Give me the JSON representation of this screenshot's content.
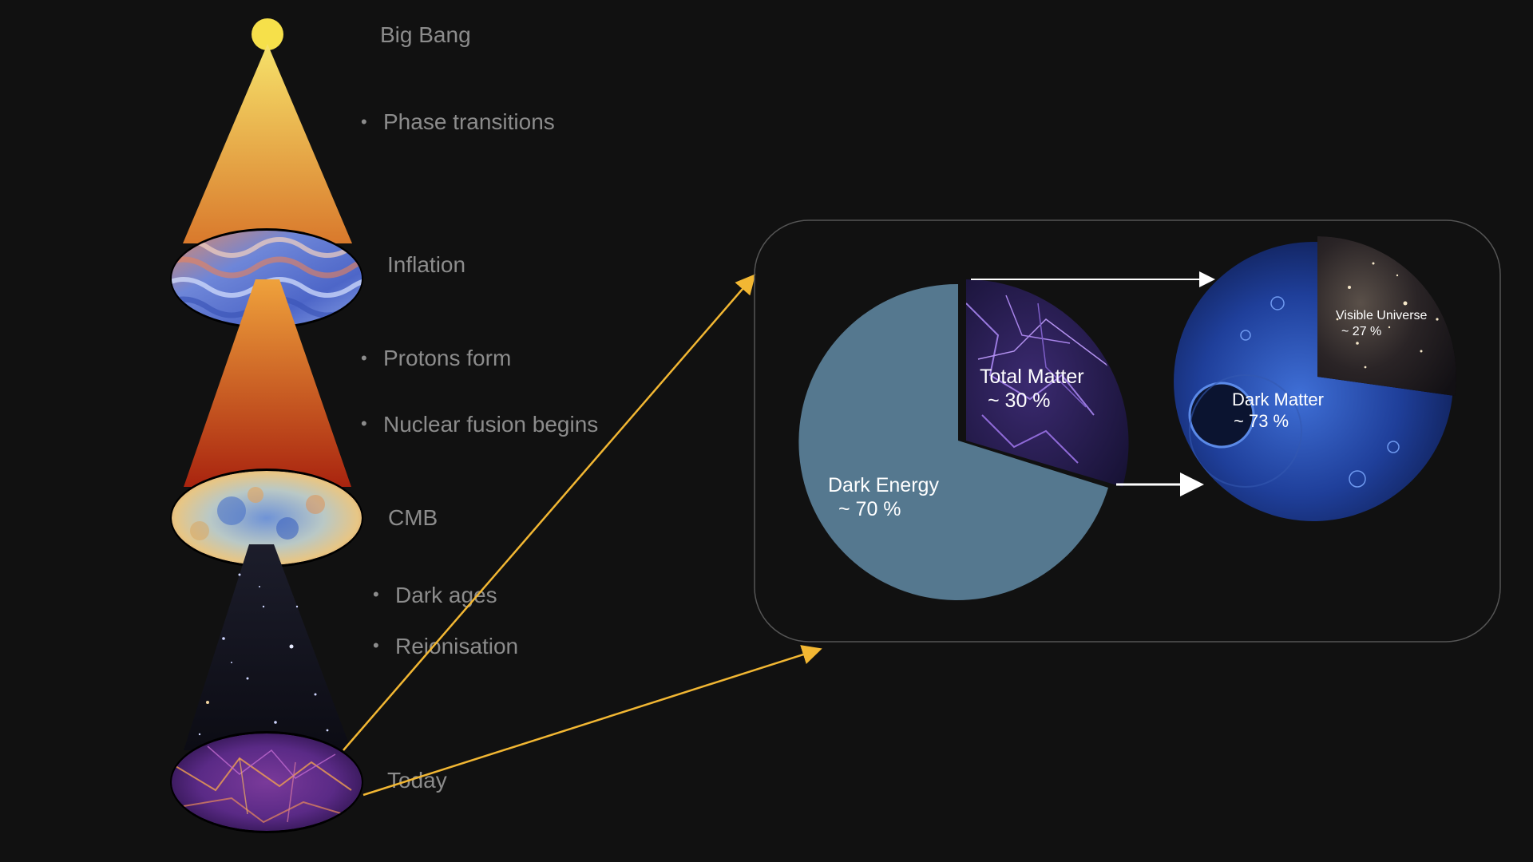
{
  "timeline": {
    "big_bang": "Big Bang",
    "phase_transitions": "Phase transitions",
    "inflation": "Inflation",
    "protons_form": "Protons form",
    "nuclear_fusion": "Nuclear fusion begins",
    "cmb": "CMB",
    "dark_ages": "Dark ages",
    "reionisation": "Reionisation",
    "today": "Today",
    "bullet_char": "•"
  },
  "composition": {
    "dark_energy": {
      "label": "Dark Energy",
      "value": "~ 70 %",
      "fraction": 0.7,
      "color": "#55788f"
    },
    "total_matter": {
      "label": "Total Matter",
      "value": "~ 30 %",
      "fraction": 0.3
    },
    "dark_matter": {
      "label": "Dark Matter",
      "value": "~ 73 %",
      "fraction": 0.73
    },
    "visible_universe": {
      "label": "Visible Universe",
      "value": "~ 27 %",
      "fraction": 0.27
    }
  },
  "colors": {
    "background": "#111111",
    "arrow_yellow": "#f2b733",
    "text_gray": "#8c8c8c",
    "big_bang_dot": "#f6e04a"
  }
}
